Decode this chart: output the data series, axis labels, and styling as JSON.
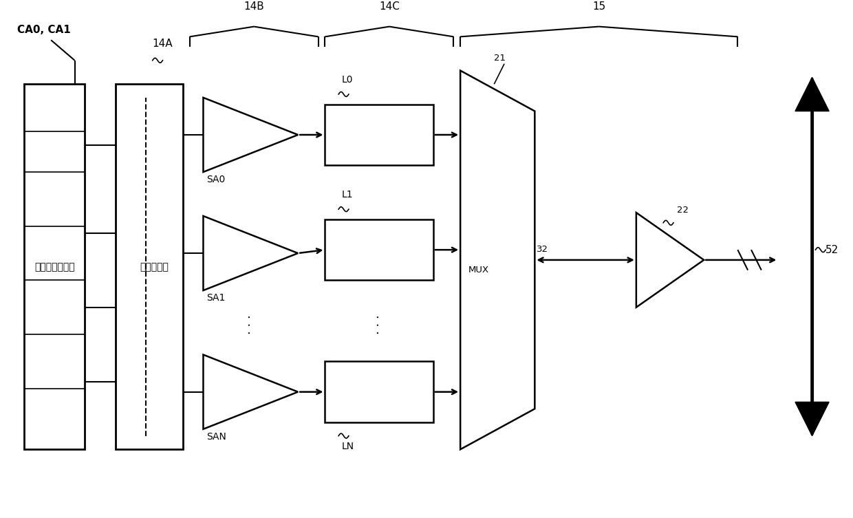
{
  "bg_color": "#ffffff",
  "line_color": "#000000",
  "labels": {
    "CA0_CA1": "CA0, CA1",
    "14A": "14A",
    "14B": "14B",
    "14C": "14C",
    "15": "15",
    "21": "21",
    "22": "22",
    "32": "32",
    "52": "52",
    "SA0": "SA0",
    "SA1": "SA1",
    "SAN": "SAN",
    "L0": "L0",
    "L1": "L1",
    "LN": "LN",
    "MUX": "MUX",
    "memory_cell": "存储器胞元阵列",
    "switch": "列开关电路",
    "dots": "· · ·"
  }
}
